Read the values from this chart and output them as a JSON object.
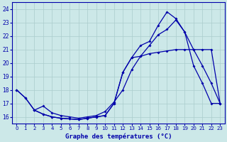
{
  "title": "Graphe des températures (°C)",
  "bg_color": "#cce8e8",
  "line_color": "#0000aa",
  "grid_color": "#aacccc",
  "xlim": [
    -0.5,
    23.5
  ],
  "ylim": [
    15.5,
    24.5
  ],
  "xticks": [
    0,
    1,
    2,
    3,
    4,
    5,
    6,
    7,
    8,
    9,
    10,
    11,
    12,
    13,
    14,
    15,
    16,
    17,
    18,
    19,
    20,
    21,
    22,
    23
  ],
  "yticks": [
    16,
    17,
    18,
    19,
    20,
    21,
    22,
    23,
    24
  ],
  "line1_x": [
    0,
    1,
    2,
    3,
    4,
    5,
    6,
    7,
    8,
    9,
    10,
    11,
    12,
    13,
    14,
    15,
    16,
    17,
    18,
    19,
    20,
    21,
    22,
    23
  ],
  "line1_y": [
    18.0,
    17.4,
    16.5,
    16.2,
    16.0,
    15.9,
    15.85,
    15.8,
    15.9,
    16.0,
    16.1,
    17.0,
    19.3,
    20.4,
    20.5,
    20.7,
    20.8,
    20.9,
    21.0,
    21.0,
    21.0,
    21.0,
    21.0,
    17.0
  ],
  "line2_x": [
    0,
    1,
    2,
    3,
    4,
    5,
    6,
    7,
    8,
    9,
    10,
    11,
    12,
    13,
    14,
    15,
    16,
    17,
    18,
    19,
    20,
    21,
    22,
    23
  ],
  "line2_y": [
    18.0,
    17.4,
    16.5,
    16.2,
    16.0,
    15.9,
    15.85,
    15.8,
    15.9,
    16.0,
    16.1,
    17.0,
    19.3,
    20.4,
    21.3,
    21.6,
    22.8,
    23.8,
    23.3,
    22.3,
    19.8,
    18.5,
    17.0,
    17.0
  ],
  "line3_x": [
    2,
    3,
    4,
    5,
    6,
    7,
    8,
    9,
    10,
    11,
    12,
    13,
    14,
    15,
    16,
    17,
    18,
    19,
    20,
    21,
    22,
    23
  ],
  "line3_y": [
    16.5,
    16.8,
    16.3,
    16.1,
    16.0,
    15.9,
    16.0,
    16.1,
    16.4,
    17.1,
    18.0,
    19.5,
    20.5,
    21.3,
    22.1,
    22.5,
    23.2,
    22.3,
    21.0,
    19.8,
    18.5,
    17.0
  ]
}
